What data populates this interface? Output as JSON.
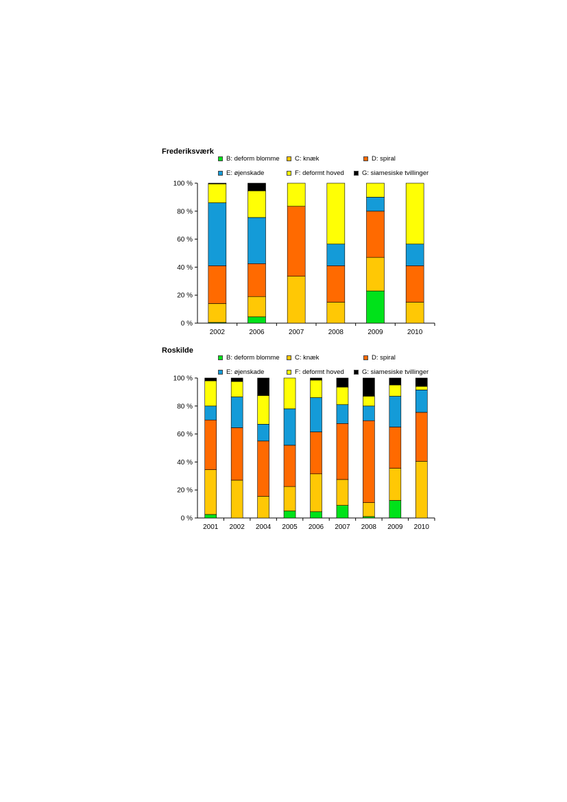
{
  "chart_data": [
    {
      "type": "bar",
      "stacked": true,
      "title": "Frederiksværk",
      "categories": [
        "2002",
        "2006",
        "2007",
        "2008",
        "2009",
        "2010"
      ],
      "yticks": [
        "0 %",
        "20 %",
        "40 %",
        "60 %",
        "80 %",
        "100 %"
      ],
      "ylim": [
        0,
        100
      ],
      "legend_position": "top",
      "series": [
        {
          "name": "B: deform blomme",
          "color": "#00e21a",
          "values": [
            0.5,
            4.5,
            0,
            0,
            23,
            0
          ]
        },
        {
          "name": "C: knæk",
          "color": "#ffc805",
          "values": [
            13.5,
            14.5,
            33.5,
            15,
            24,
            15
          ]
        },
        {
          "name": "D: spiral",
          "color": "#ff6a00",
          "values": [
            27,
            23.5,
            50,
            26,
            33,
            26
          ]
        },
        {
          "name": "E: øjenskade",
          "color": "#149bd8",
          "values": [
            45,
            33,
            0,
            15.5,
            10,
            15.5
          ]
        },
        {
          "name": "F: deformt hoved",
          "color": "#ffff05",
          "values": [
            13.5,
            19,
            16.5,
            43.5,
            10,
            43.5
          ]
        },
        {
          "name": "G: siamesiske tvillinger",
          "color": "#000000",
          "values": [
            0.5,
            5.5,
            0,
            0,
            0,
            0
          ]
        }
      ]
    },
    {
      "type": "bar",
      "stacked": true,
      "title": "Roskilde",
      "categories": [
        "2001",
        "2002",
        "2004",
        "2005",
        "2006",
        "2007",
        "2008",
        "2009",
        "2010"
      ],
      "yticks": [
        "0 %",
        "20 %",
        "40 %",
        "60 %",
        "80 %",
        "100 %"
      ],
      "ylim": [
        0,
        100
      ],
      "legend_position": "top",
      "series": [
        {
          "name": "B: deform blomme",
          "color": "#00e21a",
          "values": [
            2.5,
            0,
            0,
            5,
            4.5,
            9,
            1,
            12.5,
            0
          ]
        },
        {
          "name": "C: knæk",
          "color": "#ffc805",
          "values": [
            32,
            27,
            15.5,
            17.5,
            27,
            18.5,
            10,
            23,
            40.5
          ]
        },
        {
          "name": "D: spiral",
          "color": "#ff6a00",
          "values": [
            35.5,
            37.5,
            39.5,
            29.5,
            30,
            40,
            58.5,
            29.5,
            35
          ]
        },
        {
          "name": "E: øjenskade",
          "color": "#149bd8",
          "values": [
            10,
            22,
            12,
            26,
            24.5,
            13.5,
            10.5,
            22,
            16
          ]
        },
        {
          "name": "F: deformt hoved",
          "color": "#ffff05",
          "values": [
            18,
            11,
            20.5,
            22,
            12.5,
            12.5,
            7,
            8,
            2.5
          ]
        },
        {
          "name": "G: siamesiske tvillinger",
          "color": "#000000",
          "values": [
            2,
            2.5,
            12.5,
            0,
            1.5,
            6.5,
            13,
            5,
            6
          ]
        }
      ]
    }
  ]
}
